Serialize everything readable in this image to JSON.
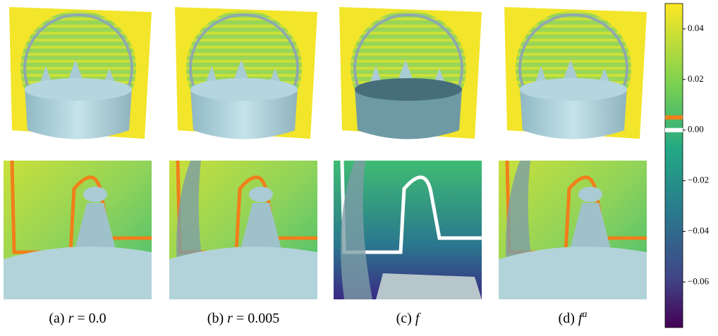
{
  "captions": [
    {
      "tag": "(a)",
      "var": "r",
      "rest": "= 0.0"
    },
    {
      "tag": "(b)",
      "var": "r",
      "rest": "= 0.005"
    },
    {
      "tag": "(c)",
      "var": "f"
    },
    {
      "tag": "(d)",
      "var": "f",
      "sup": "a"
    }
  ],
  "colorbar": {
    "ylim": [
      -0.078,
      0.05
    ],
    "yticks": [
      {
        "value": 0.04,
        "label": "0.04"
      },
      {
        "value": 0.02,
        "label": "0.02"
      },
      {
        "value": 0,
        "label": "0.00"
      },
      {
        "value": -0.02,
        "label": "−0.02"
      },
      {
        "value": -0.04,
        "label": "−0.04"
      },
      {
        "value": -0.06,
        "label": "−0.06"
      }
    ],
    "levels": [
      {
        "value": 0.005,
        "color": "#f07f1a"
      },
      {
        "value": 0,
        "color": "#ffffff"
      }
    ]
  }
}
